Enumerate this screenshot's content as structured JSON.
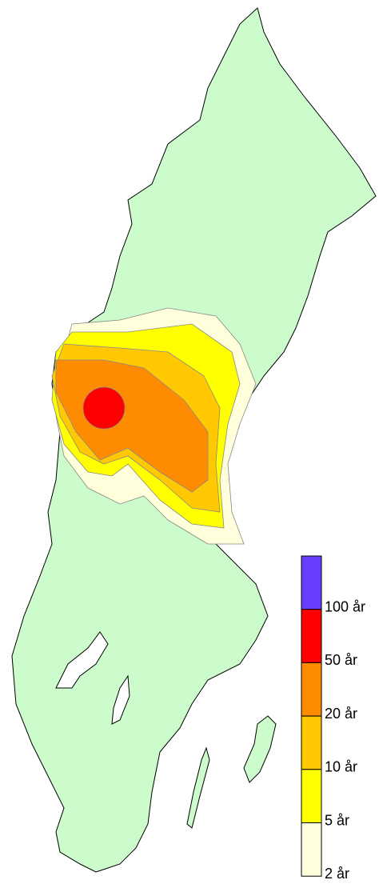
{
  "legend": {
    "classes": [
      {
        "color": "#6a3cff"
      },
      {
        "color": "#ff0000"
      },
      {
        "color": "#ff8c00"
      },
      {
        "color": "#ffc800"
      },
      {
        "color": "#ffff00"
      },
      {
        "color": "#ffffdc"
      }
    ],
    "labels": [
      "100 år",
      "50 år",
      "20 år",
      "10 år",
      "5 år",
      "2 år"
    ]
  }
}
